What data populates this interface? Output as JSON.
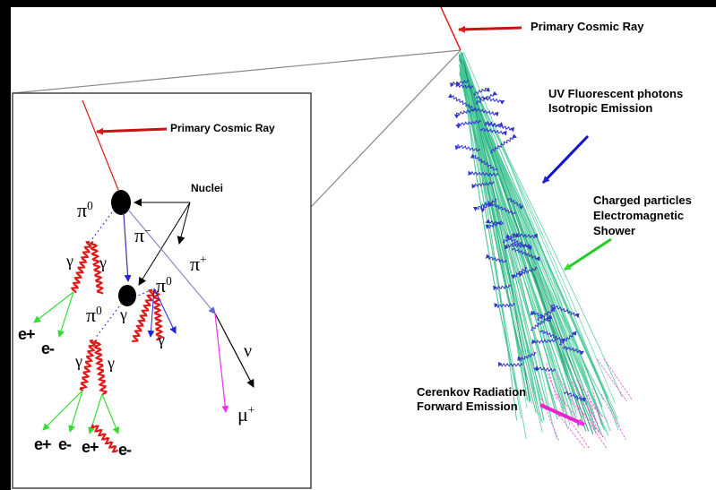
{
  "labels": {
    "primary_cosmic_ray_main": "Primary Cosmic Ray",
    "primary_cosmic_ray_inset": "Primary Cosmic Ray",
    "uv_line1": "UV Fluorescent photons",
    "uv_line2": "Isotropic Emission",
    "charged_line1": "Charged particles",
    "charged_line2": "Electromagnetic",
    "charged_line3": "Shower",
    "cerenkov_line1": "Cerenkov Radiation",
    "cerenkov_line2": "Forward Emission",
    "nuclei": "Nuclei"
  },
  "symbols": {
    "pi": "π",
    "sup_zero": "0",
    "sup_minus": "−",
    "sup_plus": "+",
    "gamma": "γ",
    "nu": "ν",
    "mu": "μ"
  },
  "products": {
    "e_plus": "e+",
    "e_minus": "e-"
  },
  "colors": {
    "background": "#000000",
    "frame": "#ffffff",
    "primary_track": "#e01818",
    "label_arrow": "#cc1111",
    "photon_track": "#2222dd",
    "shower_track": "#33bb88",
    "electron_track": "#33dd33",
    "muon_track": "#ee33ee",
    "pion_track": "#8888cc",
    "uv_arrow": "#1111cc",
    "charged_arrow": "#22cc22",
    "cerenkov_arrow": "#ee22cc"
  },
  "icons": {
    "nucleus": "black-filled-circle",
    "photon": "wavy-arrow"
  }
}
